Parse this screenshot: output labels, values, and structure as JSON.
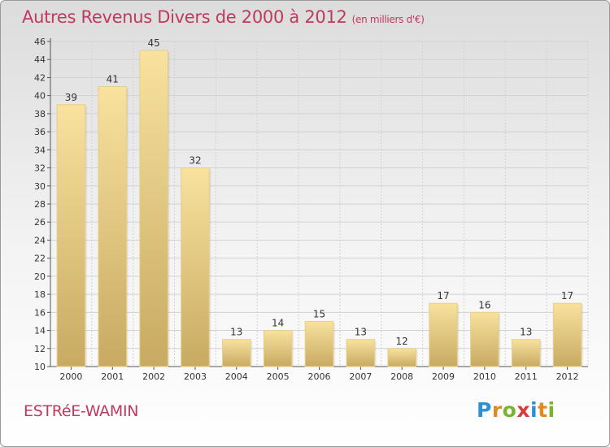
{
  "header": {
    "title": "Autres Revenus Divers de 2000 à 2012",
    "unit": "(en milliers d'€)"
  },
  "footer": {
    "commune": "ESTRéE-WAMIN",
    "logo_letters": [
      {
        "char": "P",
        "color": "#2e8fd6"
      },
      {
        "char": "r",
        "color": "#e38a1f"
      },
      {
        "char": "o",
        "color": "#7bb32e"
      },
      {
        "char": "x",
        "color": "#d93a3a"
      },
      {
        "char": "i",
        "color": "#2e8fd6"
      },
      {
        "char": "t",
        "color": "#e38a1f"
      },
      {
        "char": "i",
        "color": "#7bb32e"
      }
    ]
  },
  "colors": {
    "title": "#c0395f",
    "bar_light": "#f8e29e",
    "bar_dark": "#c8aa62",
    "grid": "#d2d2d2"
  },
  "chart_data": {
    "type": "bar",
    "title": "Autres Revenus Divers de 2000 à 2012",
    "subtitle": "(en milliers d'€)",
    "categories": [
      "2000",
      "2001",
      "2002",
      "2003",
      "2004",
      "2005",
      "2006",
      "2007",
      "2008",
      "2009",
      "2010",
      "2011",
      "2012"
    ],
    "values": [
      39,
      41,
      45,
      32,
      13,
      14,
      15,
      13,
      12,
      17,
      16,
      13,
      17
    ],
    "xlabel": "",
    "ylabel": "",
    "ylim": [
      10,
      46
    ],
    "yticks": [
      10,
      12,
      14,
      16,
      18,
      20,
      22,
      24,
      26,
      28,
      30,
      32,
      34,
      36,
      38,
      40,
      42,
      44,
      46
    ],
    "grid": true
  }
}
